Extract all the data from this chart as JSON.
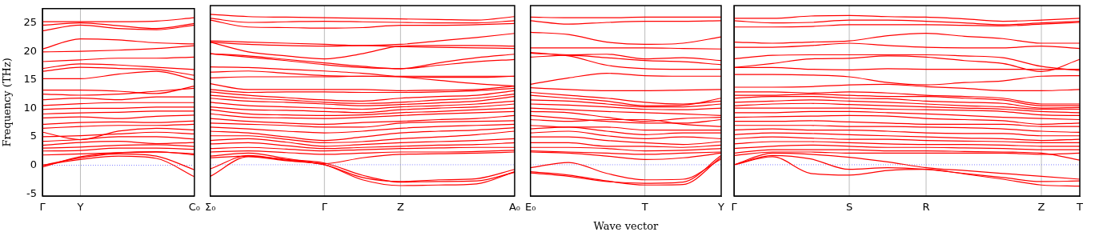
{
  "chart_data": [
    {
      "type": "line",
      "ylabel": "Frequency (THz)",
      "categories": [
        "Γ",
        "Y",
        null,
        null,
        "C₀"
      ],
      "ylim": [
        -5.4,
        27.5
      ],
      "yticks": [
        -5,
        0,
        5,
        10,
        15,
        20,
        25
      ],
      "ref_lines": [
        {
          "axis": "y",
          "value": 0,
          "color": "#7f7fff",
          "line_style": "dotted"
        },
        {
          "axis": "x",
          "value": "Y",
          "color": "#bbbbbb"
        }
      ],
      "series": [
        {
          "color": "#ff0000",
          "values": [
            0,
            1.0,
            1.6,
            1.2,
            -2.0
          ]
        },
        {
          "color": "#ff0000",
          "values": [
            0,
            1.3,
            2.0,
            1.6,
            -0.8
          ]
        },
        {
          "color": "#ff0000",
          "values": [
            -0.3,
            1.5,
            2.2,
            2.4,
            1.8
          ]
        },
        {
          "color": "#ff0000",
          "values": [
            1.8,
            2.0,
            2.2,
            2.3,
            2.0
          ]
        },
        {
          "color": "#ff0000",
          "values": [
            2.5,
            2.6,
            3.0,
            3.0,
            2.8
          ]
        },
        {
          "color": "#ff0000",
          "values": [
            3.0,
            3.2,
            3.5,
            3.6,
            3.3
          ]
        },
        {
          "color": "#ff0000",
          "values": [
            3.5,
            4.0,
            4.2,
            3.8,
            4.0
          ]
        },
        {
          "color": "#ff0000",
          "values": [
            4.2,
            4.5,
            5.0,
            5.0,
            4.6
          ]
        },
        {
          "color": "#ff0000",
          "values": [
            5.0,
            5.2,
            5.5,
            5.8,
            5.5
          ]
        },
        {
          "color": "#ff0000",
          "values": [
            5.8,
            4.5,
            6.0,
            6.5,
            6.2
          ]
        },
        {
          "color": "#ff0000",
          "values": [
            6.5,
            6.8,
            7.0,
            7.0,
            7.2
          ]
        },
        {
          "color": "#ff0000",
          "values": [
            7.2,
            7.5,
            7.6,
            7.5,
            7.8
          ]
        },
        {
          "color": "#ff0000",
          "values": [
            8.3,
            8.5,
            8.2,
            8.6,
            8.8
          ]
        },
        {
          "color": "#ff0000",
          "values": [
            9.0,
            9.2,
            9.3,
            9.5,
            9.5
          ]
        },
        {
          "color": "#ff0000",
          "values": [
            9.8,
            10.0,
            10.0,
            10.2,
            10.2
          ]
        },
        {
          "color": "#ff0000",
          "values": [
            10.5,
            10.8,
            11.0,
            11.0,
            11.0
          ]
        },
        {
          "color": "#ff0000",
          "values": [
            11.5,
            11.8,
            11.5,
            12.0,
            12.0
          ]
        },
        {
          "color": "#ff0000",
          "values": [
            12.5,
            12.3,
            12.5,
            13.0,
            13.5
          ]
        },
        {
          "color": "#ff0000",
          "values": [
            13.2,
            13.2,
            13.0,
            12.6,
            13.9
          ]
        },
        {
          "color": "#ff0000",
          "values": [
            15.2,
            15.2,
            16.0,
            16.5,
            15.0
          ]
        },
        {
          "color": "#ff0000",
          "values": [
            16.5,
            17.2,
            17.0,
            16.8,
            15.8
          ]
        },
        {
          "color": "#ff0000",
          "values": [
            17.0,
            17.8,
            17.6,
            17.2,
            16.8
          ]
        },
        {
          "color": "#ff0000",
          "values": [
            18.2,
            18.5,
            18.8,
            18.8,
            19.0
          ]
        },
        {
          "color": "#ff0000",
          "values": [
            19.9,
            20.0,
            20.2,
            20.5,
            21.0
          ]
        },
        {
          "color": "#ff0000",
          "values": [
            20.4,
            22.2,
            22.0,
            21.5,
            21.3
          ]
        },
        {
          "color": "#ff0000",
          "values": [
            23.6,
            24.6,
            24.0,
            23.8,
            24.6
          ]
        },
        {
          "color": "#ff0000",
          "values": [
            24.6,
            25.0,
            24.5,
            24.0,
            24.9
          ]
        },
        {
          "color": "#ff0000",
          "values": [
            25.2,
            25.2,
            25.2,
            25.3,
            25.9
          ]
        }
      ]
    },
    {
      "type": "line",
      "categories": [
        "Σ₀",
        null,
        null,
        "Γ",
        null,
        "Z",
        null,
        null,
        "A₀"
      ],
      "ylim": [
        -5.4,
        27.5
      ],
      "yticks": [
        -5,
        0,
        5,
        10,
        15,
        20,
        25
      ],
      "tick_labels": "x",
      "ref_lines": [
        {
          "axis": "y",
          "value": 0,
          "color": "#7f7fff",
          "line_style": "dotted"
        },
        {
          "axis": "x",
          "value": "Γ",
          "color": "#bbbbbb"
        },
        {
          "axis": "x",
          "value": "Z",
          "color": "#bbbbbb"
        }
      ],
      "series": [
        {
          "color": "#ff0000",
          "values": [
            -0.7,
            1.6,
            0.8,
            0,
            -2.2,
            -2.9,
            -2.6,
            -2.4,
            -0.8
          ]
        },
        {
          "color": "#ff0000",
          "values": [
            -2.0,
            1.4,
            0.7,
            0,
            -2.6,
            -3.6,
            -3.5,
            -3.3,
            -1.2
          ]
        },
        {
          "color": "#ff0000",
          "values": [
            1.2,
            1.5,
            0.9,
            0.3,
            -1.8,
            -3.0,
            -2.9,
            -2.8,
            -1.3
          ]
        },
        {
          "color": "#ff0000",
          "values": [
            1.5,
            2.0,
            1.1,
            0.2,
            1.2,
            1.8,
            1.9,
            2.0,
            2.2
          ]
        },
        {
          "color": "#ff0000",
          "values": [
            2.2,
            2.4,
            2.1,
            1.8,
            2.0,
            2.2,
            2.2,
            2.3,
            2.5
          ]
        },
        {
          "color": "#ff0000",
          "values": [
            2.8,
            3.0,
            2.7,
            2.4,
            2.6,
            2.8,
            2.9,
            3.0,
            3.0
          ]
        },
        {
          "color": "#ff0000",
          "values": [
            3.6,
            3.8,
            3.3,
            2.8,
            3.0,
            3.2,
            3.4,
            3.5,
            3.8
          ]
        },
        {
          "color": "#ff0000",
          "values": [
            4.2,
            4.5,
            3.9,
            3.2,
            3.5,
            3.8,
            4.0,
            4.2,
            4.5
          ]
        },
        {
          "color": "#ff0000",
          "values": [
            5.0,
            5.0,
            4.4,
            3.8,
            4.0,
            4.5,
            4.8,
            5.2,
            5.8
          ]
        },
        {
          "color": "#ff0000",
          "values": [
            5.8,
            5.5,
            4.8,
            4.2,
            4.8,
            5.5,
            5.8,
            6.0,
            6.4
          ]
        },
        {
          "color": "#ff0000",
          "values": [
            6.5,
            6.2,
            5.8,
            5.5,
            5.8,
            6.3,
            6.6,
            6.8,
            7.0
          ]
        },
        {
          "color": "#ff0000",
          "values": [
            7.2,
            7.0,
            6.8,
            6.5,
            6.5,
            7.2,
            7.4,
            7.5,
            7.6
          ]
        },
        {
          "color": "#ff0000",
          "values": [
            8.0,
            7.5,
            7.2,
            7.0,
            7.3,
            7.5,
            7.8,
            8.0,
            8.5
          ]
        },
        {
          "color": "#ff0000",
          "values": [
            8.8,
            8.2,
            8.1,
            8.0,
            8.2,
            8.5,
            8.8,
            9.0,
            9.2
          ]
        },
        {
          "color": "#ff0000",
          "values": [
            9.5,
            8.8,
            8.6,
            8.5,
            8.6,
            9.0,
            9.2,
            9.5,
            9.8
          ]
        },
        {
          "color": "#ff0000",
          "values": [
            10.0,
            9.5,
            9.4,
            9.2,
            9.0,
            9.5,
            9.8,
            10.0,
            10.5
          ]
        },
        {
          "color": "#ff0000",
          "values": [
            10.8,
            10.2,
            10.0,
            9.8,
            9.6,
            10.0,
            10.2,
            10.5,
            11.0
          ]
        },
        {
          "color": "#ff0000",
          "values": [
            11.5,
            11.0,
            10.8,
            10.5,
            10.2,
            10.4,
            10.7,
            11.0,
            11.8
          ]
        },
        {
          "color": "#ff0000",
          "values": [
            12.0,
            11.5,
            11.2,
            10.8,
            10.6,
            10.8,
            11.2,
            11.5,
            12.2
          ]
        },
        {
          "color": "#ff0000",
          "values": [
            12.6,
            12.0,
            11.6,
            11.2,
            11.0,
            11.5,
            11.8,
            12.0,
            12.8
          ]
        },
        {
          "color": "#ff0000",
          "values": [
            13.0,
            12.5,
            12.6,
            12.6,
            12.5,
            12.5,
            12.6,
            12.8,
            13.2
          ]
        },
        {
          "color": "#ff0000",
          "values": [
            14.0,
            13.0,
            13.0,
            13.0,
            13.0,
            12.8,
            12.9,
            13.0,
            13.6
          ]
        },
        {
          "color": "#ff0000",
          "values": [
            15.0,
            15.2,
            15.2,
            15.2,
            15.3,
            15.2,
            15.1,
            15.1,
            15.3
          ]
        },
        {
          "color": "#ff0000",
          "values": [
            16.0,
            16.2,
            15.8,
            15.4,
            15.3,
            15.3,
            15.3,
            15.3,
            15.3
          ]
        },
        {
          "color": "#ff0000",
          "values": [
            16.9,
            16.8,
            16.5,
            16.2,
            15.8,
            15.2,
            14.6,
            14.0,
            13.6
          ]
        },
        {
          "color": "#ff0000",
          "values": [
            19.2,
            18.6,
            18.0,
            17.3,
            16.8,
            16.6,
            17.2,
            17.8,
            18.2
          ]
        },
        {
          "color": "#ff0000",
          "values": [
            19.2,
            18.8,
            18.2,
            17.6,
            17.0,
            16.6,
            17.6,
            18.5,
            19.1
          ]
        },
        {
          "color": "#ff0000",
          "values": [
            21.2,
            19.5,
            18.8,
            18.3,
            19.2,
            20.5,
            20.6,
            20.6,
            20.5
          ]
        },
        {
          "color": "#ff0000",
          "values": [
            21.2,
            20.8,
            20.6,
            20.5,
            20.6,
            20.4,
            20.3,
            20.2,
            20.1
          ]
        },
        {
          "color": "#ff0000",
          "values": [
            21.4,
            21.2,
            21.0,
            20.8,
            20.6,
            20.8,
            21.4,
            22.0,
            22.7
          ]
        },
        {
          "color": "#ff0000",
          "values": [
            25.0,
            23.8,
            23.7,
            23.6,
            23.7,
            24.1,
            24.1,
            24.2,
            24.4
          ]
        },
        {
          "color": "#ff0000",
          "values": [
            25.3,
            24.6,
            24.7,
            24.8,
            24.7,
            24.6,
            24.5,
            24.5,
            24.9
          ]
        },
        {
          "color": "#ff0000",
          "values": [
            26.0,
            25.6,
            25.5,
            25.4,
            25.3,
            25.2,
            25.1,
            25.0,
            25.6
          ]
        }
      ]
    },
    {
      "type": "line",
      "xlabel": "Wave vector",
      "categories": [
        "E₀",
        null,
        null,
        "T",
        null,
        "Y"
      ],
      "ylim": [
        -5.4,
        27.5
      ],
      "yticks": [
        -5,
        0,
        5,
        10,
        15,
        20,
        25
      ],
      "tick_labels": "x",
      "ref_lines": [
        {
          "axis": "y",
          "value": 0,
          "color": "#7f7fff",
          "line_style": "dotted"
        },
        {
          "axis": "x",
          "value": "T",
          "color": "#bbbbbb"
        }
      ],
      "series": [
        {
          "color": "#ff0000",
          "values": [
            -0.5,
            0.4,
            -1.5,
            -2.6,
            -2.5,
            1.0
          ]
        },
        {
          "color": "#ff0000",
          "values": [
            -1.2,
            -1.8,
            -2.8,
            -3.5,
            -3.4,
            1.3
          ]
        },
        {
          "color": "#ff0000",
          "values": [
            -1.4,
            -2.0,
            -2.9,
            -3.2,
            -3.0,
            1.6
          ]
        },
        {
          "color": "#ff0000",
          "values": [
            2.2,
            2.0,
            1.5,
            0.9,
            1.2,
            2.0
          ]
        },
        {
          "color": "#ff0000",
          "values": [
            2.4,
            2.2,
            2.0,
            1.8,
            2.0,
            2.2
          ]
        },
        {
          "color": "#ff0000",
          "values": [
            3.0,
            3.0,
            2.8,
            2.4,
            2.5,
            2.8
          ]
        },
        {
          "color": "#ff0000",
          "values": [
            3.8,
            3.8,
            3.2,
            3.2,
            3.0,
            3.4
          ]
        },
        {
          "color": "#ff0000",
          "values": [
            4.8,
            4.8,
            4.2,
            3.8,
            3.5,
            4.0
          ]
        },
        {
          "color": "#ff0000",
          "values": [
            5.5,
            5.8,
            5.0,
            4.5,
            4.8,
            4.5
          ]
        },
        {
          "color": "#ff0000",
          "values": [
            6.2,
            6.5,
            5.8,
            5.2,
            5.5,
            5.5
          ]
        },
        {
          "color": "#ff0000",
          "values": [
            6.8,
            6.5,
            6.5,
            6.0,
            6.0,
            6.0
          ]
        },
        {
          "color": "#ff0000",
          "values": [
            7.8,
            7.5,
            7.8,
            7.8,
            7.0,
            6.6
          ]
        },
        {
          "color": "#ff0000",
          "values": [
            8.5,
            8.0,
            7.5,
            7.2,
            7.2,
            7.8
          ]
        },
        {
          "color": "#ff0000",
          "values": [
            9.2,
            9.0,
            8.2,
            7.5,
            8.0,
            8.2
          ]
        },
        {
          "color": "#ff0000",
          "values": [
            9.8,
            9.5,
            9.2,
            9.0,
            8.8,
            8.5
          ]
        },
        {
          "color": "#ff0000",
          "values": [
            10.5,
            10.3,
            10.0,
            9.6,
            9.5,
            9.8
          ]
        },
        {
          "color": "#ff0000",
          "values": [
            11.2,
            11.0,
            10.5,
            10.0,
            10.0,
            10.5
          ]
        },
        {
          "color": "#ff0000",
          "values": [
            12.0,
            11.5,
            11.0,
            10.2,
            10.3,
            11.5
          ]
        },
        {
          "color": "#ff0000",
          "values": [
            12.5,
            12.0,
            11.5,
            10.8,
            10.5,
            11.0
          ]
        },
        {
          "color": "#ff0000",
          "values": [
            13.3,
            13.0,
            12.8,
            12.8,
            12.9,
            13.0
          ]
        },
        {
          "color": "#ff0000",
          "values": [
            13.9,
            15.0,
            15.8,
            15.4,
            15.3,
            15.3
          ]
        },
        {
          "color": "#ff0000",
          "values": [
            19.3,
            18.8,
            17.2,
            16.6,
            16.5,
            16.5
          ]
        },
        {
          "color": "#ff0000",
          "values": [
            18.6,
            18.9,
            18.5,
            18.0,
            17.8,
            17.3
          ]
        },
        {
          "color": "#ff0000",
          "values": [
            19.4,
            19.0,
            19.1,
            18.3,
            18.5,
            18.0
          ]
        },
        {
          "color": "#ff0000",
          "values": [
            20.2,
            20.2,
            20.2,
            20.2,
            20.1,
            20.0
          ]
        },
        {
          "color": "#ff0000",
          "values": [
            22.9,
            22.5,
            21.2,
            20.8,
            21.0,
            22.1
          ]
        },
        {
          "color": "#ff0000",
          "values": [
            24.9,
            24.3,
            24.6,
            24.8,
            24.8,
            24.9
          ]
        },
        {
          "color": "#ff0000",
          "values": [
            25.5,
            25.4,
            25.4,
            25.5,
            25.5,
            25.5
          ]
        }
      ]
    },
    {
      "type": "line",
      "categories": [
        "Γ",
        null,
        null,
        "S",
        null,
        "R",
        null,
        null,
        "Z",
        "T"
      ],
      "ylim": [
        -5.4,
        27.5
      ],
      "yticks": [
        -5,
        0,
        5,
        10,
        15,
        20,
        25
      ],
      "tick_labels": "x",
      "ref_lines": [
        {
          "axis": "y",
          "value": 0,
          "color": "#7f7fff",
          "line_style": "dotted"
        },
        {
          "axis": "x",
          "value": "S",
          "color": "#bbbbbb"
        },
        {
          "axis": "x",
          "value": "R",
          "color": "#bbbbbb"
        },
        {
          "axis": "x",
          "value": "Z",
          "color": "#bbbbbb"
        }
      ],
      "series": [
        {
          "color": "#ff0000",
          "values": [
            0,
            1.4,
            -1.5,
            -1.8,
            -1.0,
            -0.8,
            -1.6,
            -2.5,
            -3.5,
            -3.7
          ]
        },
        {
          "color": "#ff0000",
          "values": [
            0,
            1.6,
            1.0,
            -0.8,
            -0.5,
            -0.8,
            -1.5,
            -2.2,
            -2.9,
            -2.8
          ]
        },
        {
          "color": "#ff0000",
          "values": [
            0,
            2.0,
            1.8,
            1.3,
            0.5,
            -0.5,
            -1.0,
            -1.5,
            -2.0,
            -2.5
          ]
        },
        {
          "color": "#ff0000",
          "values": [
            1.6,
            2.2,
            2.2,
            2.0,
            2.0,
            2.0,
            2.0,
            2.0,
            1.8,
            2.0
          ]
        },
        {
          "color": "#ff0000",
          "values": [
            2.0,
            2.6,
            2.6,
            2.6,
            2.4,
            2.4,
            2.3,
            2.2,
            2.0,
            0.8
          ]
        },
        {
          "color": "#ff0000",
          "values": [
            2.8,
            3.2,
            3.4,
            3.2,
            3.0,
            3.0,
            2.9,
            2.8,
            2.6,
            2.6
          ]
        },
        {
          "color": "#ff0000",
          "values": [
            3.6,
            4.0,
            4.0,
            3.8,
            3.6,
            3.5,
            3.5,
            3.4,
            3.2,
            3.2
          ]
        },
        {
          "color": "#ff0000",
          "values": [
            4.5,
            4.8,
            4.6,
            4.4,
            4.4,
            4.2,
            4.1,
            4.0,
            3.8,
            3.8
          ]
        },
        {
          "color": "#ff0000",
          "values": [
            5.2,
            5.5,
            5.4,
            5.2,
            5.0,
            4.8,
            4.6,
            4.5,
            4.2,
            4.4
          ]
        },
        {
          "color": "#ff0000",
          "values": [
            6.0,
            6.2,
            6.0,
            6.0,
            5.8,
            5.5,
            5.4,
            5.4,
            5.0,
            5.0
          ]
        },
        {
          "color": "#ff0000",
          "values": [
            6.8,
            6.8,
            6.8,
            6.6,
            6.6,
            6.5,
            6.4,
            6.2,
            5.8,
            5.6
          ]
        },
        {
          "color": "#ff0000",
          "values": [
            7.5,
            7.5,
            7.6,
            7.4,
            7.2,
            7.0,
            7.0,
            7.0,
            6.6,
            6.6
          ]
        },
        {
          "color": "#ff0000",
          "values": [
            8.2,
            8.3,
            8.4,
            8.5,
            8.4,
            8.0,
            7.8,
            7.6,
            7.0,
            7.2
          ]
        },
        {
          "color": "#ff0000",
          "values": [
            9.0,
            9.0,
            9.2,
            9.2,
            9.0,
            8.8,
            8.5,
            8.2,
            8.0,
            7.8
          ]
        },
        {
          "color": "#ff0000",
          "values": [
            9.8,
            9.8,
            9.8,
            9.8,
            9.6,
            9.5,
            9.4,
            9.2,
            8.6,
            8.5
          ]
        },
        {
          "color": "#ff0000",
          "values": [
            10.2,
            10.5,
            10.6,
            10.4,
            10.2,
            10.0,
            9.8,
            9.6,
            9.2,
            9.0
          ]
        },
        {
          "color": "#ff0000",
          "values": [
            10.8,
            11.0,
            11.2,
            11.0,
            10.8,
            10.5,
            10.2,
            10.0,
            9.6,
            9.6
          ]
        },
        {
          "color": "#ff0000",
          "values": [
            11.5,
            11.8,
            11.8,
            11.5,
            11.4,
            11.0,
            10.8,
            10.6,
            9.8,
            9.9
          ]
        },
        {
          "color": "#ff0000",
          "values": [
            12.0,
            12.0,
            12.2,
            12.0,
            11.8,
            11.8,
            11.5,
            11.2,
            10.2,
            10.2
          ]
        },
        {
          "color": "#ff0000",
          "values": [
            12.6,
            12.6,
            12.4,
            12.6,
            12.4,
            12.0,
            11.8,
            11.5,
            10.5,
            10.5
          ]
        },
        {
          "color": "#ff0000",
          "values": [
            13.4,
            13.4,
            13.5,
            13.8,
            13.9,
            13.5,
            13.2,
            12.8,
            12.8,
            13.0
          ]
        },
        {
          "color": "#ff0000",
          "values": [
            15.6,
            15.6,
            15.5,
            15.2,
            14.2,
            13.8,
            14.2,
            14.5,
            15.3,
            15.4
          ]
        },
        {
          "color": "#ff0000",
          "values": [
            16.8,
            16.8,
            16.5,
            16.4,
            16.6,
            16.5,
            16.5,
            16.5,
            16.5,
            16.5
          ]
        },
        {
          "color": "#ff0000",
          "values": [
            16.8,
            17.5,
            18.3,
            18.4,
            18.8,
            18.6,
            18.0,
            17.5,
            16.1,
            18.2
          ]
        },
        {
          "color": "#ff0000",
          "values": [
            18.3,
            18.9,
            19.0,
            19.0,
            19.0,
            19.0,
            18.8,
            18.5,
            17.0,
            16.3
          ]
        },
        {
          "color": "#ff0000",
          "values": [
            20.3,
            20.3,
            20.6,
            21.0,
            20.6,
            20.3,
            20.2,
            20.2,
            20.5,
            20.1
          ]
        },
        {
          "color": "#ff0000",
          "values": [
            21.2,
            21.0,
            21.2,
            21.4,
            22.3,
            22.7,
            22.2,
            21.8,
            21.0,
            21.0
          ]
        },
        {
          "color": "#ff0000",
          "values": [
            23.8,
            23.8,
            23.9,
            24.2,
            24.2,
            24.2,
            24.1,
            24.0,
            24.3,
            24.6
          ]
        },
        {
          "color": "#ff0000",
          "values": [
            24.9,
            24.5,
            24.6,
            25.0,
            25.0,
            24.8,
            24.5,
            24.2,
            24.5,
            24.8
          ]
        },
        {
          "color": "#ff0000",
          "values": [
            25.3,
            25.3,
            25.7,
            25.8,
            25.6,
            25.5,
            25.2,
            24.8,
            25.0,
            25.3
          ]
        }
      ]
    }
  ]
}
